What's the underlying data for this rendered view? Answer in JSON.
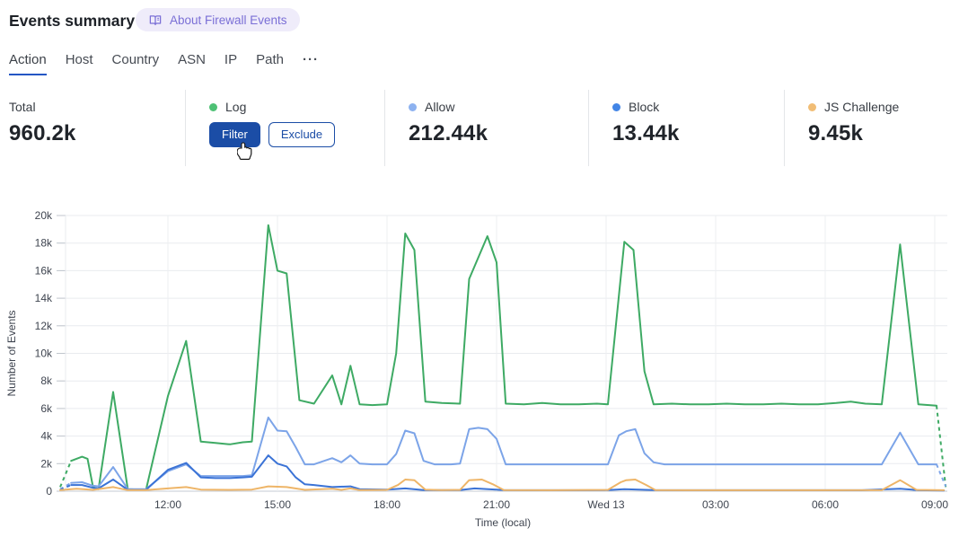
{
  "header": {
    "title": "Events summary",
    "about_badge": "About Firewall Events"
  },
  "tabs": {
    "items": [
      {
        "label": "Action",
        "active": true
      },
      {
        "label": "Host",
        "active": false
      },
      {
        "label": "Country",
        "active": false
      },
      {
        "label": "ASN",
        "active": false
      },
      {
        "label": "IP",
        "active": false
      },
      {
        "label": "Path",
        "active": false
      },
      {
        "label": "···",
        "active": false
      }
    ]
  },
  "stats": {
    "cards": [
      {
        "label": "Total",
        "value": "960.2k"
      },
      {
        "label": "Log",
        "dot_color": "#4ec175",
        "buttons": {
          "filter": "Filter",
          "exclude": "Exclude"
        }
      },
      {
        "label": "Allow",
        "dot_color": "#8db2f0",
        "value": "212.44k"
      },
      {
        "label": "Block",
        "dot_color": "#4285e6",
        "value": "13.44k"
      },
      {
        "label": "JS Challenge",
        "dot_color": "#f1bd75",
        "value": "9.45k"
      }
    ]
  },
  "colors": {
    "accent_blue": "#1b4da6",
    "tab_underline": "#2456c4",
    "badge_bg": "#efecfa",
    "badge_text": "#7a6fd6",
    "grid": "#e9ebef",
    "zero_line": "#c6cbd3",
    "axis_text": "#3f4550"
  },
  "chart_data": {
    "type": "line",
    "title": "",
    "xlabel": "Time (local)",
    "ylabel": "Number of Events",
    "ylim": [
      0,
      20000
    ],
    "grid": true,
    "legend_position": "top-stat-cards",
    "y_ticks": [
      "0",
      "2k",
      "4k",
      "6k",
      "8k",
      "10k",
      "12k",
      "14k",
      "16k",
      "18k",
      "20k"
    ],
    "x_ticks": [
      {
        "t": 3,
        "label": "12:00"
      },
      {
        "t": 6,
        "label": "15:00"
      },
      {
        "t": 9,
        "label": "18:00"
      },
      {
        "t": 12,
        "label": "21:00"
      },
      {
        "t": 15,
        "label": "Wed 13"
      },
      {
        "t": 18,
        "label": "03:00"
      },
      {
        "t": 21,
        "label": "06:00"
      },
      {
        "t": 24,
        "label": "09:00"
      }
    ],
    "x_domain_hours": [
      0,
      24.3
    ],
    "units": "thousands of events; t = hours after chart start (3h before first 12:00 tick)",
    "series": [
      {
        "name": "Log",
        "color": "#3eaa64",
        "dash_start": true,
        "dash_end": true,
        "points": [
          [
            0.05,
            0.3
          ],
          [
            0.35,
            2.2
          ],
          [
            0.65,
            2.5
          ],
          [
            0.8,
            2.35
          ],
          [
            0.95,
            0.3
          ],
          [
            1.1,
            0.15
          ],
          [
            1.5,
            7.2
          ],
          [
            1.9,
            0.15
          ],
          [
            2.4,
            0.1
          ],
          [
            3.0,
            6.9
          ],
          [
            3.5,
            10.9
          ],
          [
            3.9,
            3.6
          ],
          [
            4.3,
            3.5
          ],
          [
            4.7,
            3.4
          ],
          [
            5.05,
            3.55
          ],
          [
            5.3,
            3.6
          ],
          [
            5.75,
            19.3
          ],
          [
            6.0,
            16.0
          ],
          [
            6.25,
            15.8
          ],
          [
            6.6,
            6.6
          ],
          [
            7.0,
            6.35
          ],
          [
            7.5,
            8.4
          ],
          [
            7.75,
            6.3
          ],
          [
            8.0,
            9.1
          ],
          [
            8.25,
            6.3
          ],
          [
            8.6,
            6.25
          ],
          [
            9.0,
            6.3
          ],
          [
            9.25,
            10.0
          ],
          [
            9.5,
            18.7
          ],
          [
            9.75,
            17.5
          ],
          [
            10.05,
            6.5
          ],
          [
            10.5,
            6.4
          ],
          [
            11.0,
            6.35
          ],
          [
            11.25,
            15.4
          ],
          [
            11.75,
            18.5
          ],
          [
            12.0,
            16.6
          ],
          [
            12.25,
            6.35
          ],
          [
            12.75,
            6.3
          ],
          [
            13.25,
            6.4
          ],
          [
            13.75,
            6.3
          ],
          [
            14.25,
            6.3
          ],
          [
            14.75,
            6.35
          ],
          [
            15.05,
            6.3
          ],
          [
            15.5,
            18.1
          ],
          [
            15.75,
            17.5
          ],
          [
            16.05,
            8.7
          ],
          [
            16.3,
            6.3
          ],
          [
            16.8,
            6.35
          ],
          [
            17.3,
            6.3
          ],
          [
            17.8,
            6.3
          ],
          [
            18.3,
            6.35
          ],
          [
            18.8,
            6.3
          ],
          [
            19.3,
            6.3
          ],
          [
            19.8,
            6.35
          ],
          [
            20.3,
            6.3
          ],
          [
            20.8,
            6.3
          ],
          [
            21.3,
            6.4
          ],
          [
            21.7,
            6.5
          ],
          [
            22.1,
            6.35
          ],
          [
            22.55,
            6.3
          ],
          [
            23.05,
            17.9
          ],
          [
            23.55,
            6.3
          ],
          [
            24.05,
            6.2
          ],
          [
            24.3,
            0.3
          ]
        ]
      },
      {
        "name": "Allow",
        "color": "#7ca4e8",
        "dash_start": true,
        "dash_end": true,
        "points": [
          [
            0.05,
            0.15
          ],
          [
            0.35,
            0.6
          ],
          [
            0.65,
            0.65
          ],
          [
            0.95,
            0.4
          ],
          [
            1.1,
            0.35
          ],
          [
            1.5,
            1.75
          ],
          [
            1.9,
            0.15
          ],
          [
            2.4,
            0.15
          ],
          [
            3.0,
            1.45
          ],
          [
            3.5,
            1.95
          ],
          [
            3.9,
            1.1
          ],
          [
            4.3,
            1.1
          ],
          [
            4.7,
            1.1
          ],
          [
            5.05,
            1.1
          ],
          [
            5.3,
            1.15
          ],
          [
            5.75,
            5.35
          ],
          [
            6.0,
            4.4
          ],
          [
            6.25,
            4.35
          ],
          [
            6.5,
            3.2
          ],
          [
            6.75,
            1.95
          ],
          [
            7.0,
            1.95
          ],
          [
            7.5,
            2.4
          ],
          [
            7.75,
            2.1
          ],
          [
            8.0,
            2.6
          ],
          [
            8.25,
            2.0
          ],
          [
            8.6,
            1.95
          ],
          [
            9.0,
            1.95
          ],
          [
            9.25,
            2.7
          ],
          [
            9.5,
            4.4
          ],
          [
            9.75,
            4.2
          ],
          [
            10.0,
            2.2
          ],
          [
            10.3,
            1.95
          ],
          [
            10.75,
            1.95
          ],
          [
            11.0,
            2.0
          ],
          [
            11.25,
            4.5
          ],
          [
            11.5,
            4.6
          ],
          [
            11.75,
            4.5
          ],
          [
            12.0,
            3.8
          ],
          [
            12.25,
            1.95
          ],
          [
            13.0,
            1.95
          ],
          [
            14.0,
            1.95
          ],
          [
            15.05,
            1.95
          ],
          [
            15.35,
            4.05
          ],
          [
            15.55,
            4.35
          ],
          [
            15.8,
            4.5
          ],
          [
            16.05,
            2.75
          ],
          [
            16.3,
            2.1
          ],
          [
            16.6,
            1.95
          ],
          [
            17.5,
            1.95
          ],
          [
            18.5,
            1.95
          ],
          [
            19.5,
            1.95
          ],
          [
            20.5,
            1.95
          ],
          [
            21.5,
            1.95
          ],
          [
            22.55,
            1.95
          ],
          [
            23.05,
            4.25
          ],
          [
            23.55,
            1.95
          ],
          [
            24.05,
            1.95
          ],
          [
            24.3,
            0.35
          ]
        ]
      },
      {
        "name": "Block",
        "color": "#3b73d6",
        "dash_start": true,
        "dash_end": false,
        "points": [
          [
            0.05,
            0.1
          ],
          [
            0.35,
            0.45
          ],
          [
            0.65,
            0.45
          ],
          [
            0.95,
            0.25
          ],
          [
            1.1,
            0.2
          ],
          [
            1.5,
            0.85
          ],
          [
            1.9,
            0.1
          ],
          [
            2.4,
            0.1
          ],
          [
            3.0,
            1.55
          ],
          [
            3.5,
            2.05
          ],
          [
            3.9,
            1.0
          ],
          [
            4.3,
            0.95
          ],
          [
            4.7,
            0.95
          ],
          [
            5.05,
            1.0
          ],
          [
            5.3,
            1.05
          ],
          [
            5.75,
            2.6
          ],
          [
            6.0,
            2.0
          ],
          [
            6.25,
            1.8
          ],
          [
            6.5,
            1.0
          ],
          [
            6.75,
            0.5
          ],
          [
            7.0,
            0.45
          ],
          [
            7.5,
            0.3
          ],
          [
            8.0,
            0.35
          ],
          [
            8.25,
            0.15
          ],
          [
            9.0,
            0.12
          ],
          [
            9.5,
            0.2
          ],
          [
            10.0,
            0.08
          ],
          [
            11.0,
            0.08
          ],
          [
            11.4,
            0.2
          ],
          [
            12.2,
            0.08
          ],
          [
            13.0,
            0.07
          ],
          [
            14.0,
            0.07
          ],
          [
            15.05,
            0.08
          ],
          [
            15.5,
            0.15
          ],
          [
            16.3,
            0.08
          ],
          [
            17.5,
            0.07
          ],
          [
            19.0,
            0.07
          ],
          [
            20.5,
            0.07
          ],
          [
            22.0,
            0.07
          ],
          [
            23.05,
            0.18
          ],
          [
            23.55,
            0.07
          ],
          [
            24.25,
            0.05
          ]
        ]
      },
      {
        "name": "JS Challenge",
        "color": "#eeb568",
        "dash_start": false,
        "dash_end": false,
        "points": [
          [
            0.05,
            0.08
          ],
          [
            0.5,
            0.18
          ],
          [
            0.95,
            0.1
          ],
          [
            1.5,
            0.3
          ],
          [
            1.9,
            0.08
          ],
          [
            2.4,
            0.08
          ],
          [
            3.0,
            0.2
          ],
          [
            3.5,
            0.3
          ],
          [
            3.9,
            0.12
          ],
          [
            4.7,
            0.1
          ],
          [
            5.3,
            0.12
          ],
          [
            5.75,
            0.35
          ],
          [
            6.25,
            0.3
          ],
          [
            6.75,
            0.1
          ],
          [
            7.5,
            0.18
          ],
          [
            7.75,
            0.1
          ],
          [
            8.0,
            0.2
          ],
          [
            8.25,
            0.08
          ],
          [
            9.0,
            0.1
          ],
          [
            9.3,
            0.45
          ],
          [
            9.5,
            0.85
          ],
          [
            9.75,
            0.8
          ],
          [
            10.05,
            0.12
          ],
          [
            10.5,
            0.08
          ],
          [
            11.0,
            0.1
          ],
          [
            11.25,
            0.8
          ],
          [
            11.6,
            0.85
          ],
          [
            11.9,
            0.5
          ],
          [
            12.2,
            0.08
          ],
          [
            13.5,
            0.07
          ],
          [
            15.05,
            0.1
          ],
          [
            15.4,
            0.65
          ],
          [
            15.55,
            0.8
          ],
          [
            15.8,
            0.85
          ],
          [
            16.1,
            0.45
          ],
          [
            16.35,
            0.08
          ],
          [
            17.5,
            0.07
          ],
          [
            19.0,
            0.07
          ],
          [
            21.0,
            0.07
          ],
          [
            22.55,
            0.08
          ],
          [
            23.05,
            0.8
          ],
          [
            23.5,
            0.1
          ],
          [
            24.25,
            0.07
          ]
        ]
      }
    ]
  }
}
